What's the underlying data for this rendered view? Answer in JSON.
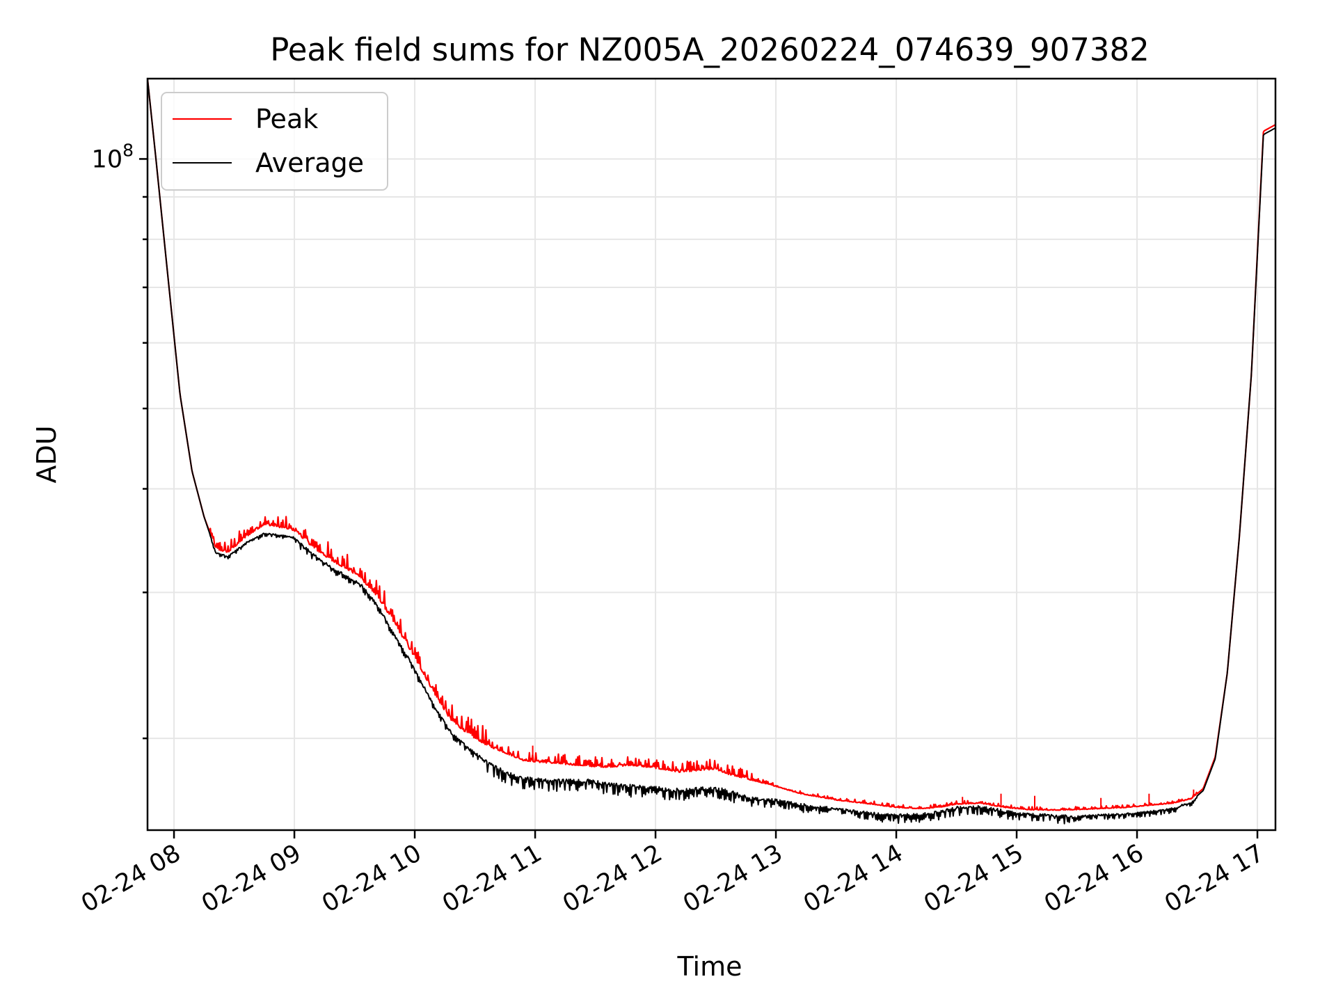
{
  "chart_data": {
    "type": "line",
    "title": "Peak field sums for NZ005A_20260224_074639_907382",
    "xlabel": "Time",
    "ylabel": "ADU",
    "yscale": "log",
    "ytick_major": [
      {
        "value": 100000000,
        "base": "10",
        "exp": "8"
      }
    ],
    "ytick_minor": [
      20000000,
      30000000,
      40000000,
      50000000,
      60000000,
      70000000,
      80000000,
      90000000
    ],
    "ylim": [
      15500000,
      125000000
    ],
    "xlim_hours": [
      7.78,
      17.15
    ],
    "x_tick_labels": [
      "02-24 08",
      "02-24 09",
      "02-24 10",
      "02-24 11",
      "02-24 12",
      "02-24 13",
      "02-24 14",
      "02-24 15",
      "02-24 16",
      "02-24 17"
    ],
    "x_tick_hours": [
      8,
      9,
      10,
      11,
      12,
      13,
      14,
      15,
      16,
      17
    ],
    "grid": true,
    "legend_position": "upper-left",
    "series": [
      {
        "name": "Peak",
        "color": "#ff0000",
        "x_hours": [
          7.78,
          7.85,
          7.95,
          8.05,
          8.15,
          8.25,
          8.35,
          8.45,
          8.6,
          8.75,
          8.85,
          9.0,
          9.15,
          9.3,
          9.45,
          9.55,
          9.7,
          9.85,
          10.0,
          10.15,
          10.3,
          10.45,
          10.6,
          10.75,
          10.9,
          11.05,
          11.25,
          11.45,
          11.6,
          11.8,
          12.0,
          12.2,
          12.4,
          12.5,
          12.6,
          12.8,
          13.0,
          13.2,
          13.5,
          13.8,
          14.0,
          14.2,
          14.35,
          14.5,
          14.7,
          14.9,
          15.1,
          15.3,
          15.5,
          15.7,
          15.9,
          16.1,
          16.3,
          16.45,
          16.55,
          16.65,
          16.75,
          16.85,
          16.95,
          17.05,
          17.15
        ],
        "values": [
          125000000,
          100000000,
          72000000,
          52000000,
          42000000,
          37000000,
          33800000,
          33500000,
          35000000,
          36200000,
          36000000,
          35600000,
          34000000,
          32800000,
          31900000,
          31200000,
          29500000,
          27200000,
          25000000,
          22800000,
          21000000,
          20200000,
          19600000,
          19200000,
          18800000,
          18700000,
          18600000,
          18500000,
          18450000,
          18550000,
          18400000,
          18200000,
          18300000,
          18350000,
          18100000,
          17800000,
          17500000,
          17150000,
          16850000,
          16650000,
          16500000,
          16450000,
          16500000,
          16650000,
          16700000,
          16500000,
          16400000,
          16380000,
          16400000,
          16450000,
          16500000,
          16600000,
          16700000,
          16900000,
          17400000,
          19000000,
          24000000,
          35000000,
          55000000,
          108000000,
          110000000
        ],
        "spikes": [
          {
            "x_hour": 10.98,
            "value": 19600000
          },
          {
            "x_hour": 14.55,
            "value": 17000000
          },
          {
            "x_hour": 14.87,
            "value": 17150000
          },
          {
            "x_hour": 15.15,
            "value": 17050000
          },
          {
            "x_hour": 15.7,
            "value": 16950000
          },
          {
            "x_hour": 16.1,
            "value": 17150000
          },
          {
            "x_hour": 16.47,
            "value": 17350000
          }
        ]
      },
      {
        "name": "Average",
        "color": "#000000",
        "x_hours": [
          7.78,
          7.85,
          7.95,
          8.05,
          8.15,
          8.25,
          8.35,
          8.45,
          8.6,
          8.75,
          8.85,
          9.0,
          9.15,
          9.3,
          9.45,
          9.55,
          9.7,
          9.85,
          10.0,
          10.15,
          10.3,
          10.45,
          10.6,
          10.75,
          10.9,
          11.05,
          11.25,
          11.45,
          11.6,
          11.8,
          12.0,
          12.2,
          12.4,
          12.5,
          12.6,
          12.8,
          13.0,
          13.2,
          13.5,
          13.8,
          14.0,
          14.2,
          14.35,
          14.5,
          14.7,
          14.9,
          15.1,
          15.3,
          15.5,
          15.7,
          15.9,
          16.1,
          16.3,
          16.45,
          16.55,
          16.65,
          16.75,
          16.85,
          16.95,
          17.05,
          17.15
        ],
        "values": [
          125000000,
          100000000,
          72000000,
          52000000,
          42000000,
          37000000,
          33500000,
          33200000,
          34500000,
          35400000,
          35300000,
          35000000,
          33500000,
          32300000,
          31400000,
          30800000,
          28900000,
          26500000,
          24300000,
          22100000,
          20400000,
          19500000,
          18800000,
          18300000,
          18000000,
          17900000,
          17850000,
          17900000,
          17700000,
          17600000,
          17500000,
          17400000,
          17500000,
          17500000,
          17350000,
          17000000,
          16900000,
          16700000,
          16500000,
          16300000,
          16200000,
          16250000,
          16350000,
          16550000,
          16600000,
          16400000,
          16250000,
          16200000,
          16150000,
          16200000,
          16250000,
          16350000,
          16500000,
          16800000,
          17300000,
          18900000,
          24000000,
          35000000,
          55000000,
          107000000,
          109000000
        ]
      }
    ]
  }
}
